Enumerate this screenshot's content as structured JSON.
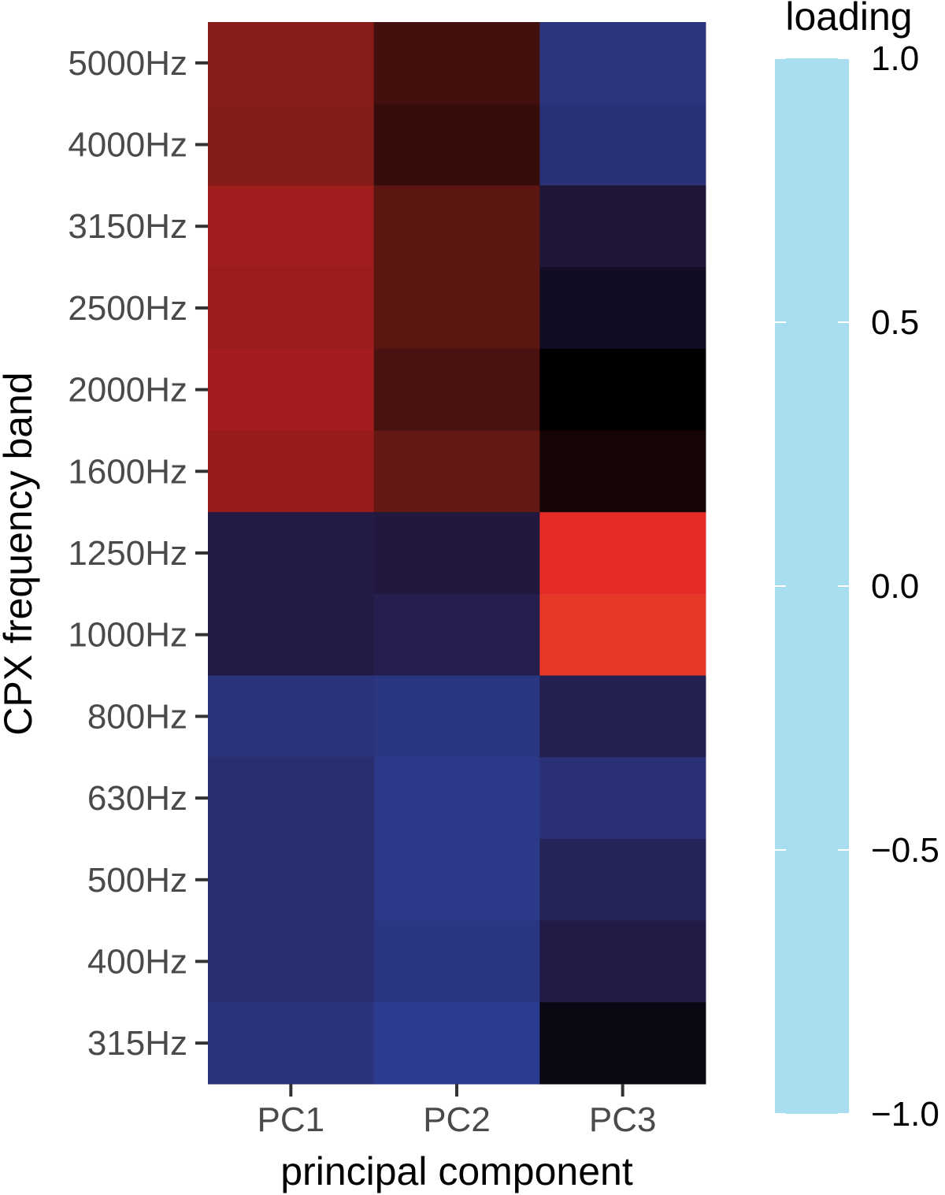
{
  "chart_data": {
    "type": "heatmap",
    "xlabel": "principal component",
    "ylabel": "CPX frequency band",
    "x_categories": [
      "PC1",
      "PC2",
      "PC3"
    ],
    "y_categories": [
      "5000Hz",
      "4000Hz",
      "3150Hz",
      "2500Hz",
      "2000Hz",
      "1600Hz",
      "1250Hz",
      "1000Hz",
      "800Hz",
      "630Hz",
      "500Hz",
      "400Hz",
      "315Hz"
    ],
    "values": [
      [
        0.3,
        0.15,
        -0.45
      ],
      [
        0.29,
        0.12,
        -0.43
      ],
      [
        0.35,
        0.2,
        -0.22
      ],
      [
        0.34,
        0.2,
        -0.14
      ],
      [
        0.36,
        0.16,
        0.0
      ],
      [
        0.33,
        0.22,
        0.05
      ],
      [
        -0.27,
        -0.25,
        0.55
      ],
      [
        -0.27,
        -0.3,
        0.6
      ],
      [
        -0.44,
        -0.46,
        -0.31
      ],
      [
        -0.4,
        -0.48,
        -0.42
      ],
      [
        -0.4,
        -0.48,
        -0.33
      ],
      [
        -0.41,
        -0.46,
        -0.27
      ],
      [
        -0.44,
        -0.5,
        -0.08
      ]
    ],
    "legend": {
      "title": "loading",
      "range": [
        -1.0,
        1.0
      ],
      "ticks": [
        1.0,
        0.5,
        0.0,
        -0.5,
        -1.0
      ],
      "tick_labels": [
        "1.0",
        "0.5",
        "0.0",
        "−0.5",
        "−1.0"
      ],
      "placement": "right",
      "colors": {
        "1.0": "#f8a61c",
        "0.75": "#ee5a26",
        "0.5": "#e21f26",
        "0.25": "#721b17",
        "0.0": "#000000",
        "-0.25": "#22183f",
        "-0.5": "#2c3c8e",
        "-0.75": "#6a65aa",
        "-1.0": "#a9def0"
      }
    },
    "grid": false
  }
}
